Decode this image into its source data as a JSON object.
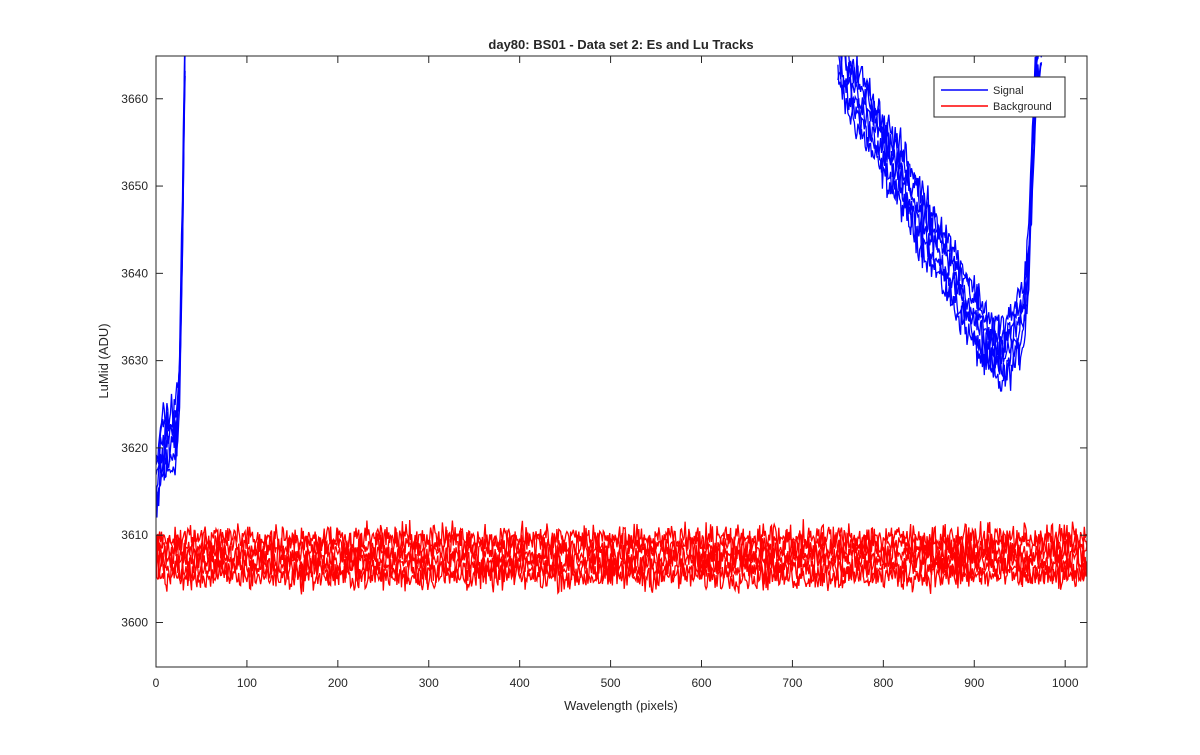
{
  "chart_data": {
    "type": "line",
    "title": "day80: BS01 - Data set 2: Es and Lu Tracks",
    "xlabel": "Wavelength (pixels)",
    "ylabel": "LuMid (ADU)",
    "xlim": [
      0,
      1024
    ],
    "ylim": [
      3594.9,
      3664.9
    ],
    "xticks": [
      0,
      100,
      200,
      300,
      400,
      500,
      600,
      700,
      800,
      900,
      1000
    ],
    "xtick_labels": [
      "0",
      "100",
      "200",
      "300",
      "400",
      "500",
      "600",
      "700",
      "800",
      "900",
      "1000"
    ],
    "yticks": [
      3600,
      3610,
      3620,
      3630,
      3640,
      3650,
      3660
    ],
    "ytick_labels": [
      "3600",
      "3610",
      "3620",
      "3630",
      "3640",
      "3650",
      "3660"
    ],
    "grid": false,
    "legend_position": "top-right",
    "series": [
      {
        "name": "Signal",
        "color": "#0000ff",
        "tracks": 6,
        "noise": 1.6,
        "x": [
          0,
          5,
          10,
          15,
          20,
          23,
          26,
          29,
          32,
          750,
          760,
          780,
          800,
          820,
          840,
          860,
          880,
          900,
          910,
          920,
          930,
          940,
          950,
          955,
          960,
          965,
          970
        ],
        "y": [
          3615.5,
          3619.5,
          3620.5,
          3620.5,
          3621.5,
          3622.5,
          3628,
          3645,
          3666,
          3666,
          3662,
          3658.5,
          3654.5,
          3651,
          3646.5,
          3643,
          3639,
          3635,
          3633,
          3631.5,
          3630.5,
          3632,
          3634,
          3636,
          3642,
          3656,
          3666
        ]
      },
      {
        "name": "Background",
        "color": "#ff0000",
        "tracks": 6,
        "noise": 1.4,
        "x": [
          0,
          1024
        ],
        "y": [
          3607.5,
          3607.5
        ]
      }
    ]
  }
}
